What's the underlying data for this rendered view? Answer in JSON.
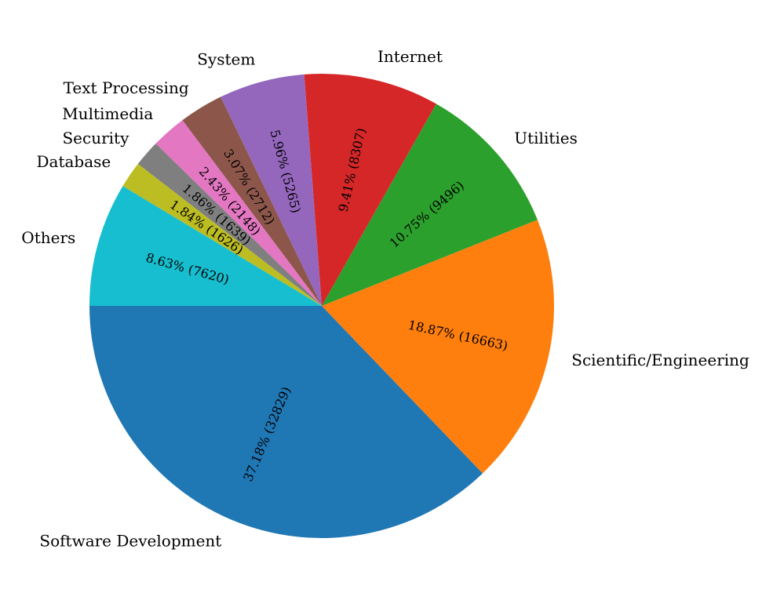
{
  "chart_data": {
    "type": "pie",
    "title": "",
    "start_angle_deg": 180,
    "direction": "counterclockwise",
    "slices": [
      {
        "label": "Software Development",
        "value": 32829,
        "percent_label": "37.18%",
        "count_label": "(32829)",
        "color": "#1f77b4"
      },
      {
        "label": "Scientific/Engineering",
        "value": 16663,
        "percent_label": "18.87%",
        "count_label": "(16663)",
        "color": "#ff7f0e"
      },
      {
        "label": "Utilities",
        "value": 9496,
        "percent_label": "10.75%",
        "count_label": "(9496)",
        "color": "#2ca02c"
      },
      {
        "label": "Internet",
        "value": 8307,
        "percent_label": "9.41%",
        "count_label": "(8307)",
        "color": "#d62728"
      },
      {
        "label": "System",
        "value": 5265,
        "percent_label": "5.96%",
        "count_label": "(5265)",
        "color": "#9467bd"
      },
      {
        "label": "Text Processing",
        "value": 2712,
        "percent_label": "3.07%",
        "count_label": "(2712)",
        "color": "#8c564b"
      },
      {
        "label": "Multimedia",
        "value": 2148,
        "percent_label": "2.43%",
        "count_label": "(2148)",
        "color": "#e377c2"
      },
      {
        "label": "Security",
        "value": 1639,
        "percent_label": "1.86%",
        "count_label": "(1639)",
        "color": "#7f7f7f"
      },
      {
        "label": "Database",
        "value": 1626,
        "percent_label": "1.84%",
        "count_label": "(1626)",
        "color": "#bcbd22"
      },
      {
        "label": "Others",
        "value": 7620,
        "percent_label": "8.63%",
        "count_label": "(7620)",
        "color": "#17becf"
      }
    ]
  }
}
